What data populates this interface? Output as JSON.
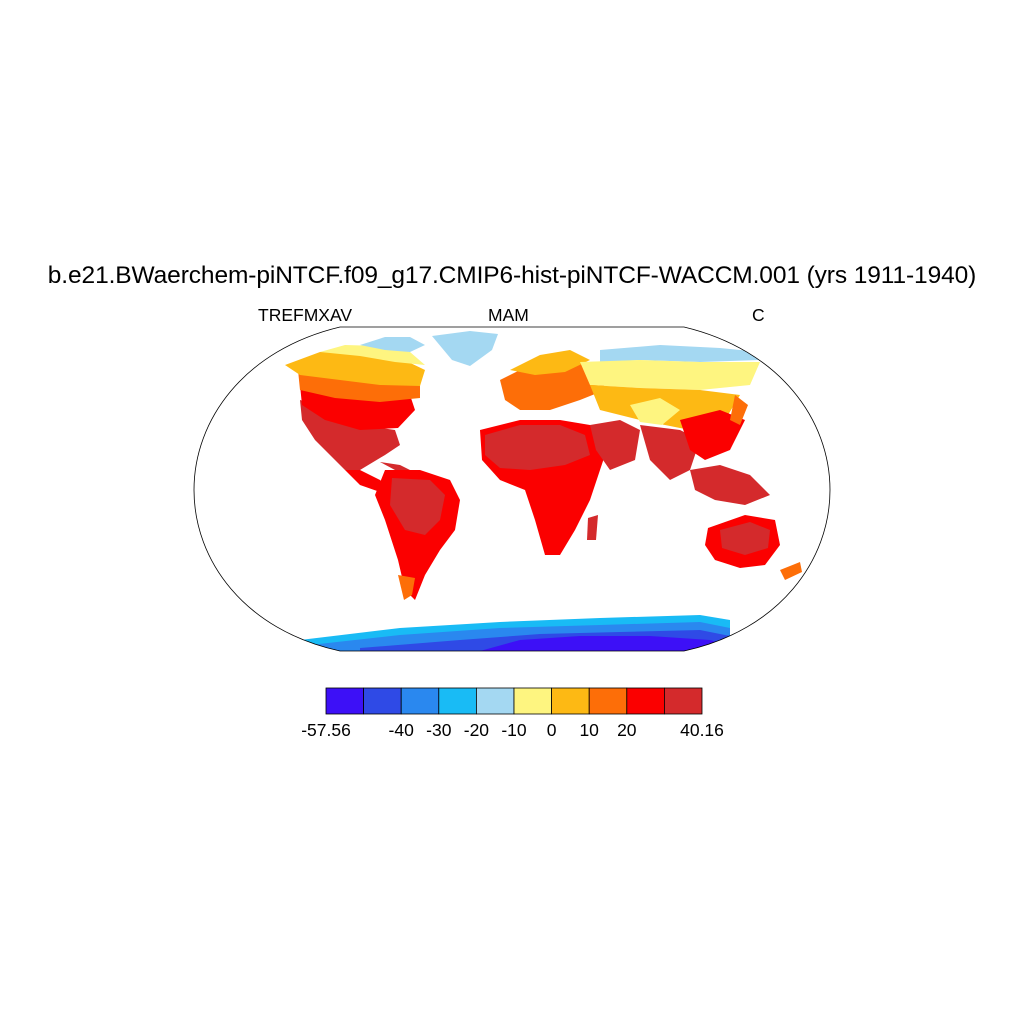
{
  "title": "b.e21.BWaerchem-piNTCF.f09_g17.CMIP6-hist-piNTCF-WACCM.001 (yrs 1911-1940)",
  "subtitle_left": "TREFMXAV",
  "subtitle_center": "MAM",
  "subtitle_right": "C",
  "chart_data": {
    "type": "heatmap",
    "projection": "Robinson",
    "variable": "TREFMXAV",
    "season": "MAM",
    "units": "C",
    "colorbar": {
      "colors": [
        "#3d10f7",
        "#2f4ae6",
        "#2a88ef",
        "#19bbf5",
        "#a4d8f2",
        "#fef580",
        "#fdb914",
        "#fd6e08",
        "#fb0000",
        "#d42a2c"
      ],
      "tick_labels": [
        "-57.56",
        "-40",
        "-30",
        "-20",
        "-10",
        "0",
        "10",
        "20",
        "40.16"
      ]
    }
  }
}
